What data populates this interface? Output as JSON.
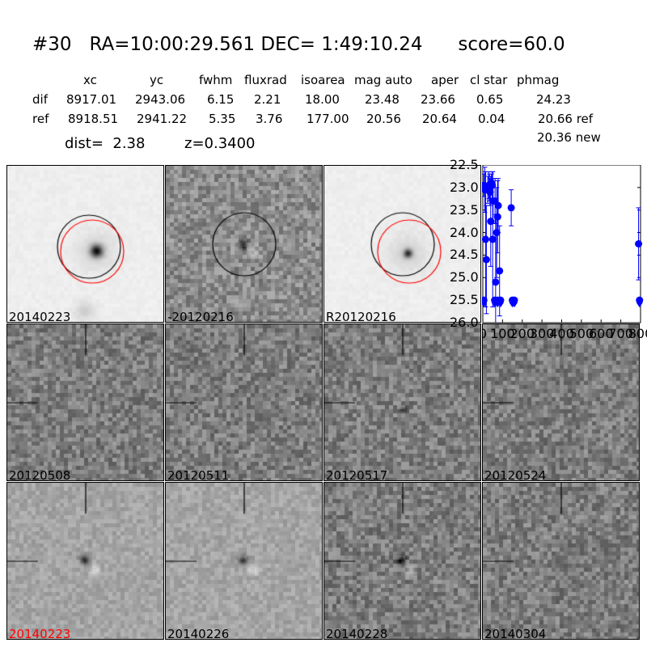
{
  "title": "#30   RA=10:00:29.561 DEC= 1:49:10.24      score=60.0",
  "table": {
    "headers": [
      "xc",
      "yc",
      "fwhm",
      "fluxrad",
      "isoarea",
      "mag auto",
      "aper",
      "cl star",
      "phmag"
    ],
    "rows": [
      {
        "label": "dif",
        "values": [
          "8917.01",
          "2943.06",
          "6.15",
          "2.21",
          "18.00",
          "23.48",
          "23.66",
          "0.65",
          "24.23"
        ]
      },
      {
        "label": "ref",
        "values": [
          "8918.51",
          "2941.22",
          "5.35",
          "3.76",
          "177.00",
          "20.56",
          "20.64",
          "0.04",
          "20.66 ref"
        ]
      }
    ],
    "extra_phmag": "20.36 new"
  },
  "dist_text": "dist=  2.38",
  "z_text": "z=0.3400",
  "stamps": [
    {
      "label": "20140223",
      "kind": "galaxy",
      "circles": true,
      "label_color": "#000000"
    },
    {
      "label": "-20120216",
      "kind": "diff",
      "circles": "black",
      "label_color": "#000000"
    },
    {
      "label": "R20120216",
      "kind": "galaxy",
      "circles": true,
      "label_color": "#000000"
    },
    {
      "label": "20120508",
      "kind": "noise",
      "label_color": "#000000"
    },
    {
      "label": "20120511",
      "kind": "noise",
      "label_color": "#000000"
    },
    {
      "label": "20120517",
      "kind": "noise",
      "label_color": "#000000"
    },
    {
      "label": "20120524",
      "kind": "noise",
      "label_color": "#000000"
    },
    {
      "label": "20140223",
      "kind": "dipole",
      "label_color": "#ff0000"
    },
    {
      "label": "20140226",
      "kind": "dipole",
      "label_color": "#000000"
    },
    {
      "label": "20140228",
      "kind": "dipole",
      "label_color": "#000000"
    },
    {
      "label": "20140304",
      "kind": "noise",
      "label_color": "#000000"
    }
  ],
  "chart_data": {
    "type": "scatter",
    "xlim": [
      0,
      800
    ],
    "ylim": [
      26.0,
      22.5
    ],
    "y_inverted": true,
    "xticks": [
      "0",
      "100",
      "200",
      "300",
      "400",
      "500",
      "600",
      "700",
      "800"
    ],
    "yticks": [
      "22.5",
      "23.0",
      "23.5",
      "24.0",
      "24.5",
      "25.0",
      "25.5",
      "26.0"
    ],
    "color": "#0000ff",
    "points": [
      [
        5,
        22.95
      ],
      [
        10,
        23.05
      ],
      [
        14,
        24.15
      ],
      [
        18,
        24.6
      ],
      [
        25,
        23.05
      ],
      [
        30,
        22.95
      ],
      [
        33,
        23.0
      ],
      [
        36,
        23.1
      ],
      [
        40,
        23.75
      ],
      [
        44,
        22.9
      ],
      [
        48,
        22.95
      ],
      [
        50,
        24.15
      ],
      [
        52,
        23.3
      ],
      [
        62,
        23.3
      ],
      [
        65,
        25.1
      ],
      [
        70,
        24.0
      ],
      [
        75,
        23.65
      ],
      [
        78,
        23.4
      ],
      [
        85,
        24.85
      ],
      [
        144,
        23.45
      ],
      [
        790,
        24.25
      ]
    ],
    "errors": [
      0.25,
      0.5,
      1.5,
      1.2,
      0.3,
      0.3,
      0.3,
      0.3,
      1.0,
      0.2,
      0.3,
      1.5,
      0.5,
      0.5,
      1.5,
      1.0,
      0.8,
      0.6,
      1.0,
      0.4,
      0.8
    ],
    "upper_limits": [
      [
        5,
        25.5
      ],
      [
        60,
        25.5
      ],
      [
        75,
        25.5
      ],
      [
        90,
        25.5
      ],
      [
        150,
        25.5
      ],
      [
        160,
        25.5
      ],
      [
        795,
        25.5
      ]
    ]
  }
}
